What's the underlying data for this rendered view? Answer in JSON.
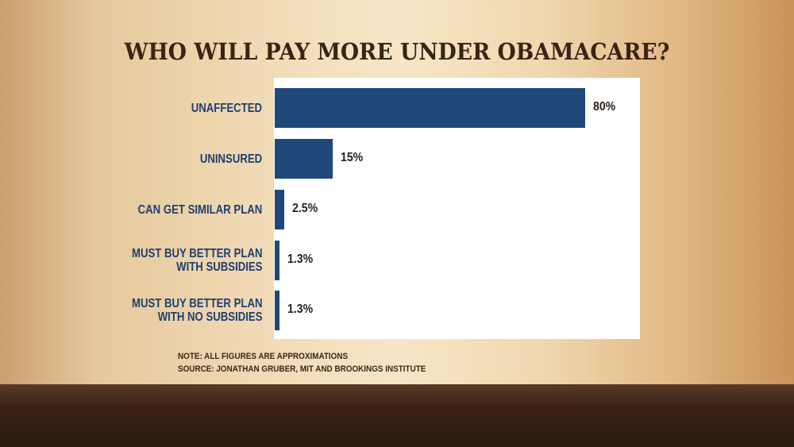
{
  "chart_data": {
    "type": "bar",
    "orientation": "horizontal",
    "title": "WHO WILL PAY MORE UNDER OBAMACARE?",
    "categories": [
      "UNAFFECTED",
      "UNINSURED",
      "CAN GET SIMILAR PLAN",
      "MUST BUY BETTER PLAN WITH SUBSIDIES",
      "MUST BUY BETTER PLAN WITH NO SUBSIDIES"
    ],
    "category_lines": [
      [
        "UNAFFECTED"
      ],
      [
        "UNINSURED"
      ],
      [
        "CAN GET SIMILAR PLAN"
      ],
      [
        "MUST BUY BETTER PLAN",
        "WITH SUBSIDIES"
      ],
      [
        "MUST BUY BETTER PLAN",
        "WITH NO SUBSIDIES"
      ]
    ],
    "values": [
      80,
      15,
      2.5,
      1.3,
      1.3
    ],
    "data_labels": [
      "80%",
      "15%",
      "2.5%",
      "1.3%",
      "1.3%"
    ],
    "xlim": [
      0,
      80
    ],
    "grid": false,
    "bar_color": "#1f4878"
  },
  "notes": {
    "note": "NOTE: ALL FIGURES ARE APPROXIMATIONS",
    "source": "SOURCE: JONATHAN GRUBER, MIT AND BROOKINGS INSTITUTE"
  }
}
